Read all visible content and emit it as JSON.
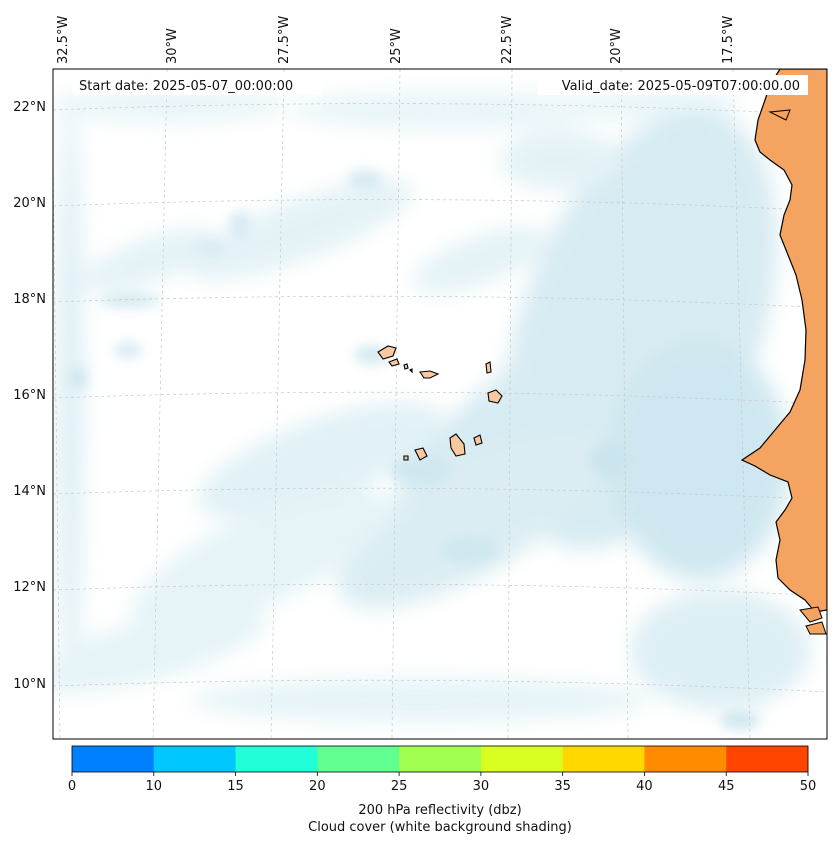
{
  "header": {
    "start_date": "Start date: 2025-05-07_00:00:00",
    "valid_date": "Valid_date: 2025-05-09T07:00:00.00"
  },
  "map": {
    "lon_labels": [
      "32.5°W",
      "30°W",
      "27.5°W",
      "25°W",
      "22.5°W",
      "20°W",
      "17.5°W"
    ],
    "lat_labels": [
      "22°N",
      "20°N",
      "18°N",
      "16°N",
      "14°N",
      "12°N",
      "10°N"
    ],
    "land_color": "#f4a460",
    "cloud_color": "#add8e6",
    "coast_color": "#000000"
  },
  "colorbar": {
    "ticks": [
      "0",
      "10",
      "15",
      "20",
      "25",
      "30",
      "35",
      "40",
      "45",
      "50"
    ],
    "colors": [
      "#0080ff",
      "#00c8ff",
      "#20ffd8",
      "#60ff90",
      "#a0ff50",
      "#d8ff20",
      "#ffd800",
      "#ff8c00",
      "#ff4500"
    ],
    "label": "200 hPa reflectivity (dbz)",
    "sublabel": "Cloud cover (white background shading)"
  }
}
